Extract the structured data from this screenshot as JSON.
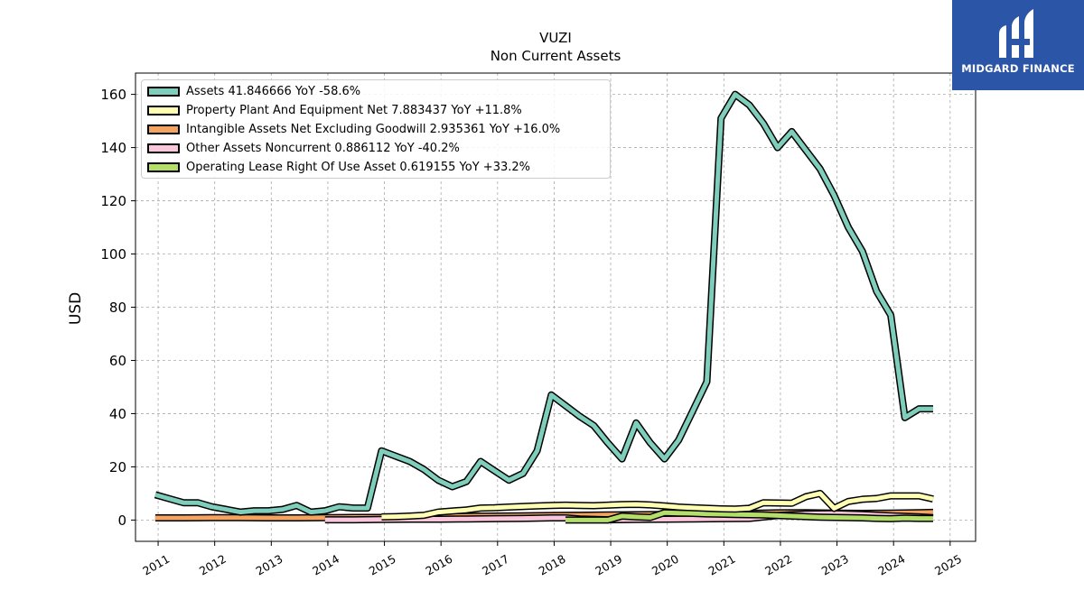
{
  "chart_data": {
    "type": "line",
    "title": "VUZI",
    "subtitle": "Non Current  Assets",
    "ylabel": "USD",
    "xlabel": "",
    "xlim": [
      2010.6,
      2025.45
    ],
    "ylim": [
      -8,
      168
    ],
    "x_ticks": [
      "2011",
      "2012",
      "2013",
      "2014",
      "2015",
      "2016",
      "2017",
      "2018",
      "2019",
      "2020",
      "2021",
      "2022",
      "2023",
      "2024",
      "2025"
    ],
    "y_ticks": [
      "0",
      "20",
      "40",
      "60",
      "80",
      "100",
      "120",
      "140",
      "160"
    ],
    "grid": true,
    "legend_position": "top-left",
    "series": [
      {
        "name": "Assets",
        "legend": "Assets  41.846666 YoY -58.6%",
        "color": "#7fcdbb",
        "x": [
          2010.95,
          2011.2,
          2011.45,
          2011.7,
          2011.95,
          2012.2,
          2012.45,
          2012.7,
          2012.95,
          2013.2,
          2013.45,
          2013.7,
          2013.95,
          2014.2,
          2014.45,
          2014.7,
          2014.95,
          2015.2,
          2015.45,
          2015.7,
          2015.95,
          2016.2,
          2016.45,
          2016.7,
          2016.95,
          2017.2,
          2017.45,
          2017.7,
          2017.95,
          2018.2,
          2018.45,
          2018.7,
          2018.95,
          2019.2,
          2019.45,
          2019.7,
          2019.95,
          2020.2,
          2020.45,
          2020.7,
          2020.95,
          2021.2,
          2021.45,
          2021.7,
          2021.95,
          2022.2,
          2022.45,
          2022.7,
          2022.95,
          2023.2,
          2023.45,
          2023.7,
          2023.95,
          2024.2,
          2024.45,
          2024.7
        ],
        "y": [
          9.5,
          8,
          6.5,
          6.5,
          5,
          4,
          3,
          3.5,
          3.5,
          4,
          5.5,
          3,
          3.5,
          5,
          4.5,
          4.5,
          26,
          24,
          22,
          19,
          15,
          12.5,
          14.5,
          22,
          18.5,
          15,
          17.5,
          26,
          47,
          43,
          39,
          35.5,
          29,
          23,
          36.5,
          29,
          23,
          30,
          41,
          52,
          151,
          160,
          156,
          149,
          140,
          146,
          139,
          132,
          122,
          110,
          101,
          86,
          77,
          38.5,
          41.8,
          41.8
        ]
      },
      {
        "name": "Property Plant And Equipment Net",
        "legend": "Property Plant And Equipment Net  7.883437 YoY +11.8%",
        "color": "#ffffb3",
        "x": [
          2014.95,
          2015.2,
          2015.45,
          2015.7,
          2015.95,
          2016.2,
          2016.45,
          2016.7,
          2016.95,
          2017.2,
          2017.45,
          2017.7,
          2017.95,
          2018.2,
          2018.45,
          2018.7,
          2018.95,
          2019.2,
          2019.45,
          2019.7,
          2019.95,
          2020.2,
          2020.45,
          2020.7,
          2020.95,
          2021.2,
          2021.45,
          2021.7,
          2021.95,
          2022.2,
          2022.45,
          2022.7,
          2022.95,
          2023.2,
          2023.45,
          2023.7,
          2023.95,
          2024.2,
          2024.45,
          2024.7
        ],
        "y": [
          1.2,
          1.3,
          1.5,
          1.8,
          3,
          3.4,
          3.8,
          4.5,
          4.6,
          4.9,
          5.1,
          5.3,
          5.5,
          5.6,
          5.5,
          5.4,
          5.6,
          5.8,
          5.9,
          5.7,
          5.3,
          4.9,
          4.6,
          4.4,
          4.2,
          4.1,
          4.4,
          6.5,
          6.4,
          6.3,
          8.8,
          10,
          4.4,
          7,
          7.8,
          8.1,
          9.1,
          9.1,
          9.1,
          7.9
        ]
      },
      {
        "name": "Intangible Assets Net Excluding Goodwill",
        "legend": "Intangible Assets Net Excluding Goodwill  2.935361 YoY +16.0%",
        "color": "#f4a460",
        "x": [
          2010.95,
          2011.45,
          2011.95,
          2012.45,
          2012.95,
          2013.45,
          2013.95,
          2014.45,
          2014.95,
          2015.45,
          2015.95,
          2016.45,
          2016.95,
          2017.45,
          2017.95,
          2018.45,
          2018.95,
          2019.45,
          2019.95,
          2020.45,
          2020.95,
          2021.45,
          2021.95,
          2022.45,
          2022.95,
          2023.45,
          2023.95,
          2024.45,
          2024.7
        ],
        "y": [
          0.8,
          0.8,
          0.9,
          0.9,
          0.8,
          0.8,
          0.9,
          1,
          1,
          1.1,
          1.3,
          1.4,
          1.5,
          1.6,
          1.7,
          1.8,
          1.9,
          2,
          2.1,
          2.3,
          2.4,
          2.5,
          2.7,
          2.8,
          2.6,
          2.5,
          2.6,
          2.8,
          2.9
        ]
      },
      {
        "name": "Other Assets Noncurrent",
        "legend": "Other Assets Noncurrent  0.886112 YoY -40.2%",
        "color": "#f9c6dc",
        "x": [
          2013.95,
          2014.45,
          2014.95,
          2015.45,
          2015.95,
          2016.45,
          2016.95,
          2017.45,
          2017.95,
          2018.2,
          2018.45,
          2018.95,
          2019.45,
          2019.95,
          2020.45,
          2020.95,
          2021.45,
          2021.95,
          2022.45,
          2022.95,
          2023.45,
          2023.95,
          2024.45,
          2024.7
        ],
        "y": [
          0.1,
          0.1,
          0.2,
          0.3,
          0.3,
          0.4,
          0.5,
          0.6,
          0.8,
          0.8,
          0.4,
          0.1,
          0.2,
          0.3,
          0.4,
          0.5,
          0.6,
          1.7,
          2.3,
          2.4,
          2.1,
          1.6,
          1.2,
          0.9
        ]
      },
      {
        "name": "Operating Lease Right Of Use Asset",
        "legend": "Operating Lease Right Of Use Asset  0.619155 YoY +33.2%",
        "color": "#b3de69",
        "x": [
          2018.2,
          2018.45,
          2018.7,
          2018.95,
          2019.2,
          2019.45,
          2019.7,
          2019.95,
          2020.2,
          2020.45,
          2020.7,
          2020.95,
          2021.2,
          2021.45,
          2021.7,
          2021.95,
          2022.2,
          2022.45,
          2022.7,
          2022.95,
          2023.2,
          2023.45,
          2023.7,
          2023.95,
          2024.2,
          2024.45,
          2024.7
        ],
        "y": [
          0,
          0,
          0,
          0,
          1.5,
          1.2,
          1,
          2.8,
          2.6,
          2.5,
          2.3,
          2.2,
          2.1,
          2,
          1.9,
          1.7,
          1.5,
          1.3,
          1.1,
          1,
          0.9,
          0.8,
          0.6,
          0.5,
          0.7,
          0.6,
          0.6
        ]
      }
    ]
  },
  "logo": {
    "text": "MIDGARD FINANCE",
    "color": "#2b56a8"
  }
}
